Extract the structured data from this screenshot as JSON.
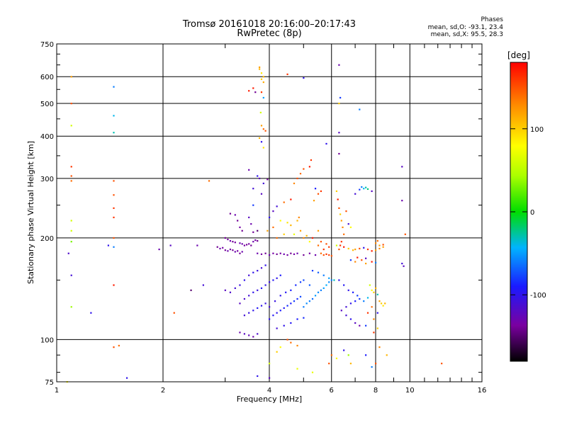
{
  "header": {
    "title": "Tromsø 20161018 20:16:00–20:17:43",
    "subtitle": "RwPretec (8p)",
    "stats_heading": "Phases",
    "stats_line1": "mean, sd,O: -93.1, 23.4",
    "stats_line2": "mean, sd,X:  95.5, 28.3"
  },
  "chart_data": {
    "type": "scatter",
    "title": "Tromsø 20161018 20:16:00–20:17:43",
    "subtitle": "RwPretec (8p)",
    "xlabel": "Frequency [MHz]",
    "ylabel": "Stationary phase Virtual Height [km]",
    "x_scale": "log",
    "y_scale": "log",
    "xlim": [
      1,
      16
    ],
    "ylim": [
      75,
      750
    ],
    "x_ticks": [
      1,
      2,
      4,
      6,
      8,
      10,
      16
    ],
    "x_tick_labels": [
      "1",
      "2",
      "4",
      "6",
      "8",
      "10",
      "16"
    ],
    "y_ticks": [
      75,
      100,
      200,
      300,
      400,
      500,
      600,
      750
    ],
    "y_tick_labels": [
      "75",
      "100",
      "200",
      "300",
      "400",
      "500",
      "600",
      "750"
    ],
    "grid": true,
    "colorbar": {
      "label": "[deg]",
      "range": [
        -180,
        180
      ],
      "ticks": [
        100,
        0,
        -100
      ],
      "tick_labels": [
        "100",
        "0",
        "-100"
      ]
    },
    "point_units": "x in MHz, y in km, c = phase in deg",
    "points": [
      [
        1.1,
        600,
        120
      ],
      [
        1.1,
        500,
        150
      ],
      [
        1.1,
        430,
        60
      ],
      [
        1.1,
        325,
        160
      ],
      [
        1.1,
        305,
        150
      ],
      [
        1.1,
        295,
        140
      ],
      [
        1.1,
        225,
        60
      ],
      [
        1.1,
        210,
        60
      ],
      [
        1.1,
        195,
        30
      ],
      [
        1.1,
        125,
        40
      ],
      [
        1.1,
        155,
        -110
      ],
      [
        1.08,
        180,
        -115
      ],
      [
        1.07,
        75,
        80
      ],
      [
        1.45,
        560,
        -60
      ],
      [
        1.45,
        460,
        -40
      ],
      [
        1.45,
        410,
        -30
      ],
      [
        1.45,
        295,
        150
      ],
      [
        1.45,
        268,
        150
      ],
      [
        1.45,
        245,
        160
      ],
      [
        1.45,
        230,
        160
      ],
      [
        1.45,
        200,
        150
      ],
      [
        1.45,
        188,
        -60
      ],
      [
        1.45,
        145,
        170
      ],
      [
        1.45,
        95,
        150
      ],
      [
        1.5,
        96,
        140
      ],
      [
        1.4,
        190,
        -100
      ],
      [
        1.25,
        120,
        -100
      ],
      [
        1.58,
        77,
        -100
      ],
      [
        1.95,
        185,
        -130
      ],
      [
        2.1,
        190,
        -120
      ],
      [
        2.15,
        120,
        150
      ],
      [
        2.4,
        140,
        -150
      ],
      [
        2.6,
        145,
        -110
      ],
      [
        2.7,
        295,
        140
      ],
      [
        2.5,
        190,
        -130
      ],
      [
        2.85,
        188,
        -140
      ],
      [
        2.9,
        186,
        -130
      ],
      [
        2.95,
        187,
        -135
      ],
      [
        3.0,
        184,
        -140
      ],
      [
        3.05,
        183,
        -130
      ],
      [
        3.1,
        185,
        -135
      ],
      [
        3.15,
        184,
        -140
      ],
      [
        3.2,
        182,
        -130
      ],
      [
        3.25,
        183,
        -135
      ],
      [
        3.3,
        180,
        -140
      ],
      [
        3.35,
        182,
        -130
      ],
      [
        3.0,
        200,
        -140
      ],
      [
        3.05,
        198,
        -135
      ],
      [
        3.1,
        196,
        -130
      ],
      [
        3.15,
        195,
        -140
      ],
      [
        3.2,
        194,
        -135
      ],
      [
        3.3,
        193,
        -130
      ],
      [
        3.35,
        192,
        -130
      ],
      [
        3.4,
        190,
        -135
      ],
      [
        3.45,
        191,
        -140
      ],
      [
        3.5,
        192,
        -135
      ],
      [
        3.55,
        190,
        -140
      ],
      [
        3.6,
        195,
        -130
      ],
      [
        3.65,
        197,
        -135
      ],
      [
        3.7,
        196,
        -140
      ],
      [
        3.1,
        236,
        -140
      ],
      [
        3.2,
        234,
        -130
      ],
      [
        3.25,
        225,
        -140
      ],
      [
        3.3,
        215,
        -135
      ],
      [
        3.35,
        210,
        -140
      ],
      [
        3.5,
        230,
        -120
      ],
      [
        3.55,
        220,
        -130
      ],
      [
        3.6,
        208,
        -140
      ],
      [
        3.7,
        210,
        -150
      ],
      [
        3.7,
        180,
        -130
      ],
      [
        3.8,
        179,
        -135
      ],
      [
        3.9,
        180,
        -140
      ],
      [
        4.0,
        178,
        -130
      ],
      [
        4.1,
        180,
        -135
      ],
      [
        4.2,
        179,
        -140
      ],
      [
        4.3,
        180,
        -135
      ],
      [
        4.4,
        179,
        -130
      ],
      [
        4.5,
        178,
        -135
      ],
      [
        4.6,
        180,
        -140
      ],
      [
        4.7,
        179,
        -135
      ],
      [
        4.8,
        180,
        -130
      ],
      [
        5.0,
        178,
        -140
      ],
      [
        5.2,
        180,
        -135
      ],
      [
        5.4,
        178,
        -130
      ],
      [
        5.6,
        180,
        140
      ],
      [
        5.7,
        178,
        150
      ],
      [
        5.8,
        179,
        160
      ],
      [
        5.9,
        178,
        155
      ],
      [
        6.0,
        177,
        150
      ],
      [
        5.5,
        190,
        140
      ],
      [
        5.7,
        185,
        160
      ],
      [
        5.3,
        200,
        170
      ],
      [
        5.5,
        210,
        120
      ],
      [
        5.6,
        195,
        150
      ],
      [
        5.8,
        192,
        150
      ],
      [
        5.9,
        188,
        160
      ],
      [
        6.2,
        190,
        60
      ],
      [
        6.35,
        190,
        160
      ],
      [
        6.5,
        188,
        170
      ],
      [
        6.7,
        186,
        100
      ],
      [
        6.9,
        184,
        110
      ],
      [
        7.0,
        185,
        120
      ],
      [
        7.2,
        186,
        150
      ],
      [
        7.4,
        187,
        -100
      ],
      [
        7.6,
        185,
        160
      ],
      [
        7.8,
        183,
        170
      ],
      [
        8.0,
        184,
        120
      ],
      [
        8.2,
        186,
        130
      ],
      [
        8.4,
        188,
        120
      ],
      [
        6.8,
        172,
        -80
      ],
      [
        7.0,
        170,
        130
      ],
      [
        7.3,
        172,
        150
      ],
      [
        7.5,
        168,
        120
      ],
      [
        7.8,
        170,
        170
      ],
      [
        8.0,
        169,
        -60
      ],
      [
        7.1,
        175,
        170
      ],
      [
        7.5,
        174,
        -120
      ],
      [
        3.95,
        210,
        120
      ],
      [
        4.1,
        215,
        140
      ],
      [
        4.3,
        225,
        80
      ],
      [
        4.5,
        222,
        90
      ],
      [
        4.6,
        218,
        110
      ],
      [
        4.8,
        225,
        110
      ],
      [
        4.7,
        205,
        70
      ],
      [
        4.9,
        210,
        120
      ],
      [
        5.0,
        200,
        130
      ],
      [
        5.1,
        203,
        110
      ],
      [
        5.2,
        195,
        80
      ],
      [
        4.2,
        200,
        140
      ],
      [
        4.4,
        205,
        100
      ],
      [
        4.85,
        230,
        130
      ],
      [
        4.0,
        230,
        -100
      ],
      [
        4.1,
        240,
        -120
      ],
      [
        4.2,
        248,
        -110
      ],
      [
        4.4,
        255,
        140
      ],
      [
        4.6,
        260,
        170
      ],
      [
        4.7,
        290,
        130
      ],
      [
        4.8,
        300,
        150
      ],
      [
        4.9,
        310,
        140
      ],
      [
        5.0,
        320,
        150
      ],
      [
        5.2,
        325,
        170
      ],
      [
        5.25,
        340,
        160
      ],
      [
        5.5,
        270,
        150
      ],
      [
        5.6,
        275,
        160
      ],
      [
        5.4,
        280,
        -90
      ],
      [
        5.35,
        258,
        120
      ],
      [
        3.7,
        305,
        -100
      ],
      [
        3.75,
        300,
        -120
      ],
      [
        3.85,
        290,
        -110
      ],
      [
        3.95,
        298,
        -140
      ],
      [
        3.5,
        318,
        -130
      ],
      [
        3.6,
        280,
        -110
      ],
      [
        3.8,
        270,
        -120
      ],
      [
        3.6,
        250,
        -80
      ],
      [
        3.0,
        140,
        -120
      ],
      [
        3.1,
        138,
        -115
      ],
      [
        3.2,
        142,
        -110
      ],
      [
        3.3,
        145,
        -105
      ],
      [
        3.4,
        150,
        -100
      ],
      [
        3.5,
        155,
        -110
      ],
      [
        3.6,
        158,
        -100
      ],
      [
        3.7,
        160,
        -105
      ],
      [
        3.8,
        163,
        -110
      ],
      [
        3.9,
        166,
        -100
      ],
      [
        3.3,
        128,
        -120
      ],
      [
        3.4,
        132,
        -115
      ],
      [
        3.5,
        135,
        -110
      ],
      [
        3.6,
        138,
        -100
      ],
      [
        3.7,
        140,
        -105
      ],
      [
        3.8,
        142,
        -95
      ],
      [
        3.9,
        145,
        -100
      ],
      [
        4.0,
        148,
        -105
      ],
      [
        4.1,
        150,
        -95
      ],
      [
        4.2,
        152,
        -100
      ],
      [
        4.3,
        155,
        -90
      ],
      [
        3.4,
        118,
        -110
      ],
      [
        3.5,
        120,
        -105
      ],
      [
        3.6,
        122,
        -100
      ],
      [
        3.7,
        124,
        -95
      ],
      [
        3.8,
        126,
        -100
      ],
      [
        3.9,
        128,
        -105
      ],
      [
        3.3,
        105,
        -130
      ],
      [
        3.4,
        104,
        -120
      ],
      [
        3.5,
        103,
        -125
      ],
      [
        3.6,
        102,
        -130
      ],
      [
        3.7,
        104,
        -115
      ],
      [
        4.0,
        115,
        -100
      ],
      [
        4.1,
        118,
        -95
      ],
      [
        4.2,
        120,
        -100
      ],
      [
        4.3,
        122,
        -90
      ],
      [
        4.4,
        124,
        -95
      ],
      [
        4.5,
        126,
        -85
      ],
      [
        4.6,
        128,
        -90
      ],
      [
        4.7,
        130,
        -80
      ],
      [
        4.8,
        132,
        -85
      ],
      [
        4.9,
        134,
        -75
      ],
      [
        4.0,
        125,
        -110
      ],
      [
        4.15,
        130,
        -105
      ],
      [
        4.3,
        135,
        -100
      ],
      [
        4.45,
        138,
        -95
      ],
      [
        4.6,
        140,
        -90
      ],
      [
        4.75,
        145,
        -85
      ],
      [
        4.9,
        148,
        -80
      ],
      [
        5.0,
        150,
        -75
      ],
      [
        5.2,
        145,
        -70
      ],
      [
        5.0,
        125,
        -60
      ],
      [
        5.1,
        128,
        -55
      ],
      [
        5.2,
        130,
        -60
      ],
      [
        5.3,
        132,
        -65
      ],
      [
        5.4,
        135,
        -50
      ],
      [
        5.5,
        138,
        -55
      ],
      [
        5.6,
        140,
        -60
      ],
      [
        5.7,
        142,
        -50
      ],
      [
        5.8,
        145,
        -45
      ],
      [
        5.9,
        148,
        -55
      ],
      [
        6.0,
        150,
        -60
      ],
      [
        4.2,
        108,
        -110
      ],
      [
        4.4,
        110,
        -100
      ],
      [
        4.6,
        112,
        -95
      ],
      [
        4.8,
        115,
        -90
      ],
      [
        5.0,
        116,
        -85
      ],
      [
        5.3,
        160,
        -80
      ],
      [
        5.5,
        158,
        -70
      ],
      [
        5.7,
        155,
        -60
      ],
      [
        5.9,
        152,
        -50
      ],
      [
        6.1,
        150,
        -30
      ],
      [
        6.3,
        150,
        -100
      ],
      [
        6.5,
        145,
        -95
      ],
      [
        6.7,
        140,
        -100
      ],
      [
        6.9,
        138,
        -90
      ],
      [
        7.1,
        135,
        -80
      ],
      [
        6.6,
        125,
        -110
      ],
      [
        6.8,
        128,
        -100
      ],
      [
        7.0,
        130,
        -90
      ],
      [
        7.2,
        132,
        -80
      ],
      [
        7.4,
        130,
        -60
      ],
      [
        7.6,
        133,
        -40
      ],
      [
        6.4,
        122,
        -120
      ],
      [
        6.6,
        118,
        -110
      ],
      [
        6.8,
        115,
        -100
      ],
      [
        7.0,
        112,
        -120
      ],
      [
        7.2,
        110,
        -130
      ],
      [
        7.7,
        145,
        60
      ],
      [
        7.8,
        140,
        80
      ],
      [
        7.9,
        138,
        100
      ],
      [
        8.0,
        142,
        110
      ],
      [
        8.1,
        136,
        -30
      ],
      [
        8.2,
        130,
        120
      ],
      [
        8.3,
        128,
        100
      ],
      [
        8.4,
        126,
        90
      ],
      [
        8.5,
        128,
        110
      ],
      [
        7.8,
        125,
        140
      ],
      [
        7.6,
        120,
        160
      ],
      [
        8.1,
        120,
        -100
      ],
      [
        7.9,
        115,
        130
      ],
      [
        7.5,
        110,
        -80
      ],
      [
        7.9,
        105,
        160
      ],
      [
        8.1,
        108,
        100
      ],
      [
        7.2,
        278,
        -80
      ],
      [
        7.4,
        280,
        -40
      ],
      [
        7.5,
        282,
        -30
      ],
      [
        7.3,
        283,
        -60
      ],
      [
        7.6,
        279,
        -20
      ],
      [
        7.0,
        270,
        -110
      ],
      [
        7.8,
        275,
        -120
      ],
      [
        8.0,
        193,
        130
      ],
      [
        8.2,
        190,
        120
      ],
      [
        8.4,
        191,
        150
      ],
      [
        8.1,
        196,
        140
      ],
      [
        9.5,
        325,
        -120
      ],
      [
        9.5,
        258,
        -130
      ],
      [
        9.7,
        205,
        150
      ],
      [
        9.5,
        168,
        -110
      ],
      [
        9.6,
        165,
        -120
      ],
      [
        12.3,
        85,
        150
      ],
      [
        3.75,
        640,
        120
      ],
      [
        3.75,
        632,
        110
      ],
      [
        3.8,
        615,
        90
      ],
      [
        3.85,
        600,
        110
      ],
      [
        3.8,
        590,
        100
      ],
      [
        3.85,
        578,
        115
      ],
      [
        3.78,
        470,
        60
      ],
      [
        3.8,
        430,
        120
      ],
      [
        3.85,
        420,
        140
      ],
      [
        3.9,
        415,
        150
      ],
      [
        3.75,
        395,
        110
      ],
      [
        3.8,
        385,
        -100
      ],
      [
        3.85,
        370,
        90
      ],
      [
        3.85,
        520,
        -50
      ],
      [
        3.8,
        540,
        160
      ],
      [
        4.5,
        610,
        160
      ],
      [
        5.0,
        595,
        -100
      ],
      [
        5.8,
        380,
        -100
      ],
      [
        6.3,
        650,
        -130
      ],
      [
        6.35,
        520,
        -80
      ],
      [
        6.3,
        500,
        100
      ],
      [
        6.3,
        410,
        -120
      ],
      [
        6.3,
        355,
        -140
      ],
      [
        7.2,
        480,
        -60
      ],
      [
        3.6,
        555,
        170
      ],
      [
        3.65,
        540,
        -140
      ],
      [
        3.5,
        545,
        170
      ],
      [
        6.2,
        275,
        100
      ],
      [
        6.25,
        260,
        170
      ],
      [
        6.3,
        245,
        150
      ],
      [
        6.35,
        235,
        100
      ],
      [
        6.4,
        225,
        120
      ],
      [
        6.45,
        215,
        130
      ],
      [
        6.5,
        205,
        140
      ],
      [
        6.4,
        195,
        160
      ],
      [
        6.6,
        240,
        150
      ],
      [
        6.7,
        220,
        -110
      ],
      [
        6.8,
        215,
        80
      ],
      [
        6.3,
        185,
        150
      ],
      [
        4.3,
        95,
        80
      ],
      [
        4.5,
        100,
        150
      ],
      [
        4.6,
        98,
        140
      ],
      [
        4.8,
        96,
        130
      ],
      [
        4.0,
        85,
        60
      ],
      [
        4.2,
        92,
        100
      ],
      [
        6.0,
        90,
        140
      ],
      [
        6.2,
        88,
        80
      ],
      [
        6.5,
        93,
        -100
      ],
      [
        6.7,
        90,
        40
      ],
      [
        7.5,
        90,
        -90
      ],
      [
        8.6,
        90,
        110
      ],
      [
        8.2,
        95,
        130
      ],
      [
        8.0,
        85,
        150
      ],
      [
        4.8,
        82,
        70
      ],
      [
        5.3,
        80,
        70
      ],
      [
        5.9,
        85,
        150
      ],
      [
        6.8,
        85,
        110
      ],
      [
        7.8,
        83,
        -60
      ],
      [
        4.0,
        77,
        -120
      ],
      [
        3.7,
        78,
        -100
      ]
    ]
  }
}
